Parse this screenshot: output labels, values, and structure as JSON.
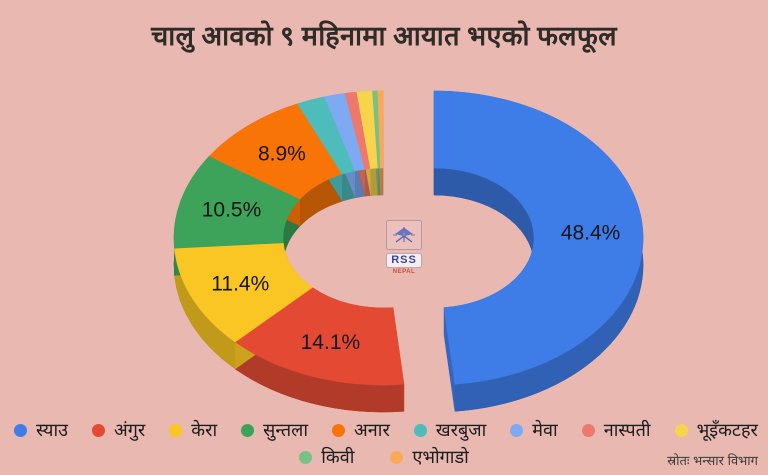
{
  "title": "चालु आवको ९ महिनामा आयात भएको फलफूल",
  "source_note": "स्रोतः भन्सार विभाग",
  "logo": {
    "line1": "RSS",
    "line2": "NEPAL"
  },
  "colors": {
    "background": "#e9b8b1",
    "title_text": "#2e2b28",
    "percent_label_text": "#161616"
  },
  "chart_data": {
    "type": "pie",
    "variant": "3d-donut",
    "title": "चालु आवको ९ महिनामा आयात भएको फलफूल",
    "unit": "%",
    "legend_position": "bottom",
    "exploded_slice": "स्याउ",
    "label_min_value": 5,
    "percent_labels_shown": [
      "48.4%",
      "14.1%",
      "11.4%",
      "10.5%",
      "8.9%"
    ],
    "slices": [
      {
        "label": "स्याउ",
        "value": 48.4,
        "color": "#3e7ce8",
        "exploded": true
      },
      {
        "label": "अंगुर",
        "value": 14.1,
        "color": "#e44a33"
      },
      {
        "label": "केरा",
        "value": 11.4,
        "color": "#f9c623"
      },
      {
        "label": "सुन्तला",
        "value": 10.5,
        "color": "#3da35a"
      },
      {
        "label": "अनार",
        "value": 8.9,
        "color": "#f97406"
      },
      {
        "label": "खरबुजा",
        "value": 2.2,
        "color": "#4dbcba"
      },
      {
        "label": "मेवा",
        "value": 1.6,
        "color": "#7daaf2"
      },
      {
        "label": "नास्पती",
        "value": 0.9,
        "color": "#ee786b"
      },
      {
        "label": "भूइँकटहर",
        "value": 1.2,
        "color": "#f8d44d"
      },
      {
        "label": "किवी",
        "value": 0.4,
        "color": "#76c285"
      },
      {
        "label": "एभोगाडो",
        "value": 0.4,
        "color": "#f9a957"
      }
    ]
  }
}
